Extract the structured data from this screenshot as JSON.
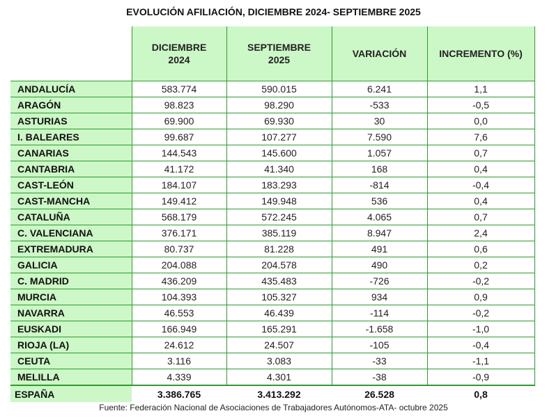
{
  "title": "EVOLUCIÓN AFILIACIÓN, DICIEMBRE 2024- SEPTIEMBRE 2025",
  "headers": [
    {
      "line1": "DICIEMBRE",
      "line2": "2024"
    },
    {
      "line1": "SEPTIEMBRE",
      "line2": "2025"
    },
    {
      "line1": "VARIACIÓN",
      "line2": ""
    },
    {
      "line1": "INCREMENTO (%)",
      "line2": ""
    }
  ],
  "rows": [
    [
      "ANDALUCÍA",
      "583.774",
      "590.015",
      "6.241",
      "1,1"
    ],
    [
      "ARAGÓN",
      "98.823",
      "98.290",
      "-533",
      "-0,5"
    ],
    [
      "ASTURIAS",
      "69.900",
      "69.930",
      "30",
      "0,0"
    ],
    [
      "I. BALEARES",
      "99.687",
      "107.277",
      "7.590",
      "7,6"
    ],
    [
      "CANARIAS",
      "144.543",
      "145.600",
      "1.057",
      "0,7"
    ],
    [
      "CANTABRIA",
      "41.172",
      "41.340",
      "168",
      "0,4"
    ],
    [
      "CAST-LEÓN",
      "184.107",
      "183.293",
      "-814",
      "-0,4"
    ],
    [
      "CAST-MANCHA",
      "149.412",
      "149.948",
      "536",
      "0,4"
    ],
    [
      "CATALUÑA",
      "568.179",
      "572.245",
      "4.065",
      "0,7"
    ],
    [
      "C. VALENCIANA",
      "376.171",
      "385.119",
      "8.947",
      "2,4"
    ],
    [
      "EXTREMADURA",
      "80.737",
      "81.228",
      "491",
      "0,6"
    ],
    [
      "GALICIA",
      "204.088",
      "204.578",
      "490",
      "0,2"
    ],
    [
      "C. MADRID",
      "436.209",
      "435.483",
      "-726",
      "-0,2"
    ],
    [
      "MURCIA",
      "104.393",
      "105.327",
      "934",
      "0,9"
    ],
    [
      "NAVARRA",
      "46.553",
      "46.439",
      "-114",
      "-0,2"
    ],
    [
      "EUSKADI",
      "166.949",
      "165.291",
      "-1.658",
      "-1,0"
    ],
    [
      "RIOJA (LA)",
      "24.612",
      "24.507",
      "-105",
      "-0,4"
    ],
    [
      "CEUTA",
      "3.116",
      "3.083",
      "-33",
      "-1,1"
    ],
    [
      "MELILLA",
      "4.339",
      "4.301",
      "-38",
      "-0,9"
    ]
  ],
  "total": [
    "ESPAÑA",
    "3.386.765",
    "3.413.292",
    "26.528",
    "0,8"
  ],
  "source": "Fuente: Federación Nacional de Asociaciones de Trabajadores Autónomos-ATA- octubre 2025",
  "colors": {
    "header_bg": "#ccf7c6",
    "border": "#2e9a2e"
  }
}
